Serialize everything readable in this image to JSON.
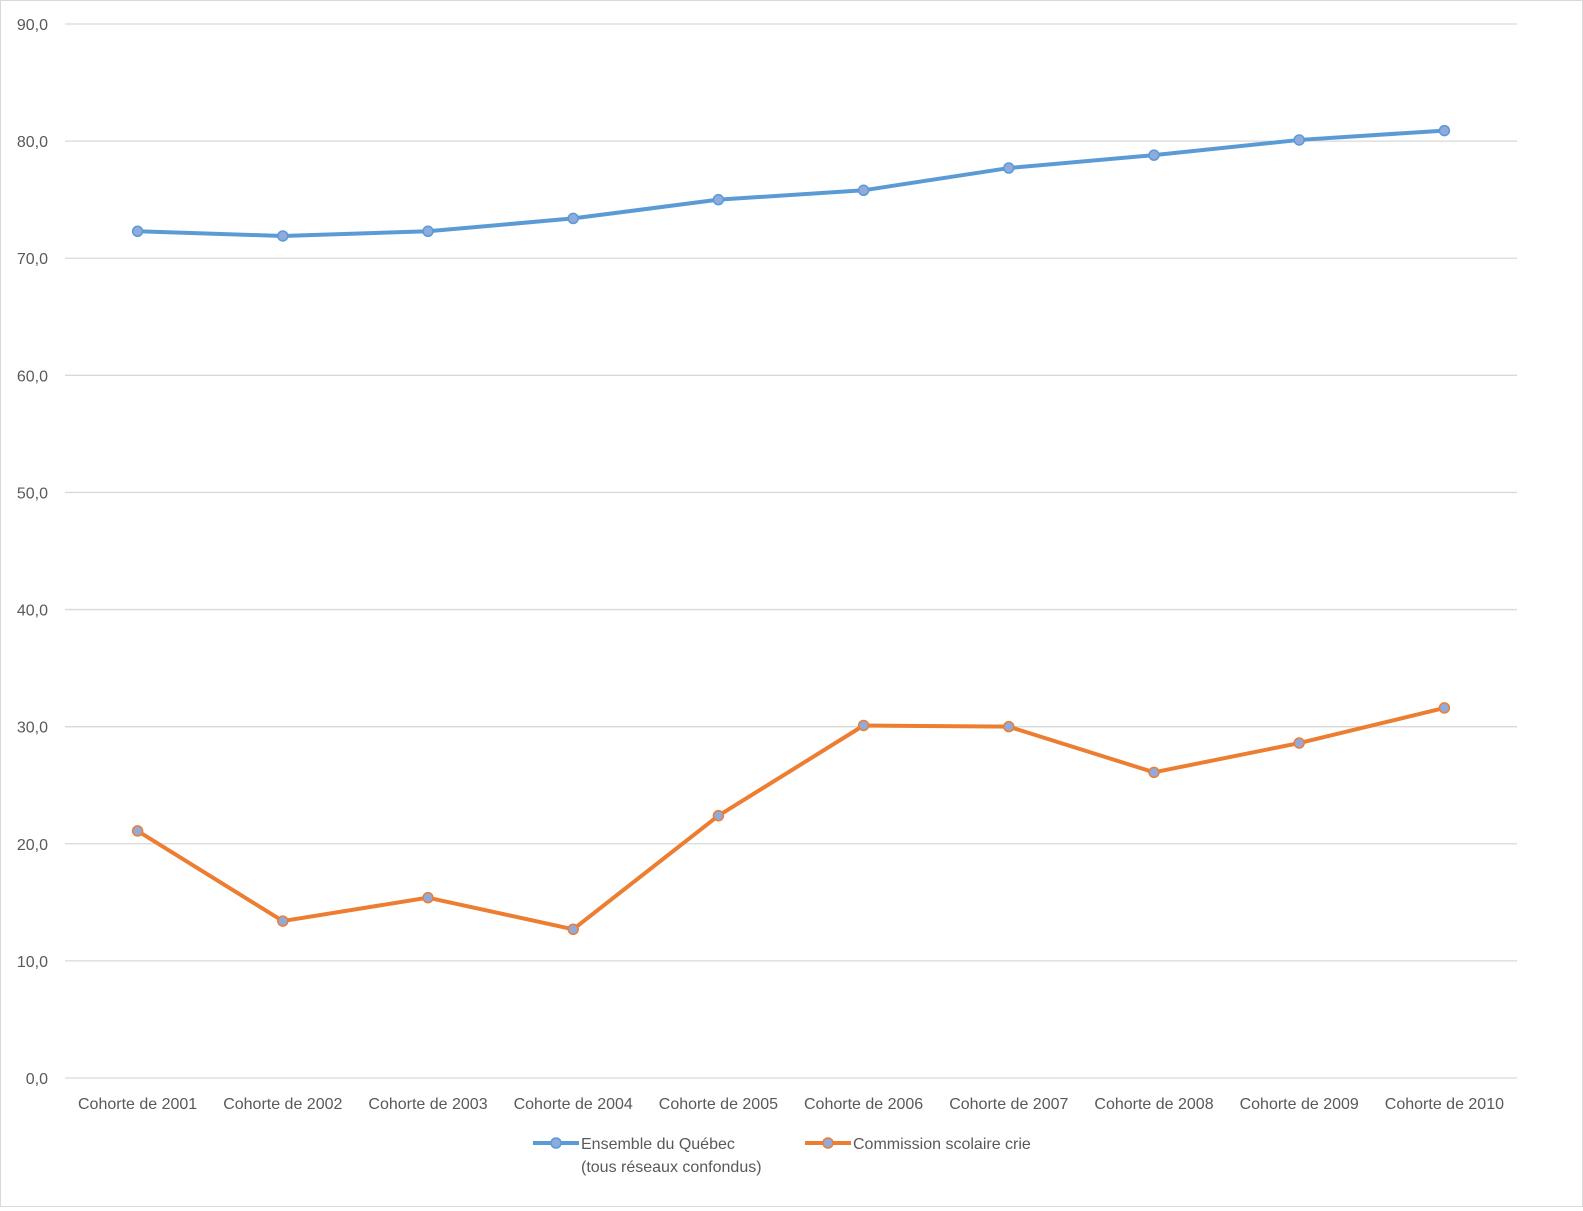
{
  "chart_data": {
    "type": "line",
    "categories": [
      "Cohorte de 2001",
      "Cohorte de 2002",
      "Cohorte de 2003",
      "Cohorte de 2004",
      "Cohorte de 2005",
      "Cohorte de 2006",
      "Cohorte de 2007",
      "Cohorte de 2008",
      "Cohorte de 2009",
      "Cohorte de 2010"
    ],
    "y_ticks": [
      "0,0",
      "10,0",
      "20,0",
      "30,0",
      "40,0",
      "50,0",
      "60,0",
      "70,0",
      "80,0",
      "90,0"
    ],
    "ylim": [
      0,
      90
    ],
    "grid": true,
    "legend_position": "bottom",
    "series": [
      {
        "name_lines": [
          "Ensemble du Québec",
          "(tous réseaux confondus)"
        ],
        "color": "#5b9bd5",
        "values": [
          72.3,
          71.9,
          72.3,
          73.4,
          75.0,
          75.8,
          77.7,
          78.8,
          80.1,
          80.9
        ]
      },
      {
        "name_lines": [
          "Commission scolaire crie"
        ],
        "color": "#ed7d31",
        "values": [
          21.1,
          13.4,
          15.4,
          12.7,
          22.4,
          30.1,
          30.0,
          26.1,
          28.6,
          31.6
        ]
      }
    ]
  }
}
